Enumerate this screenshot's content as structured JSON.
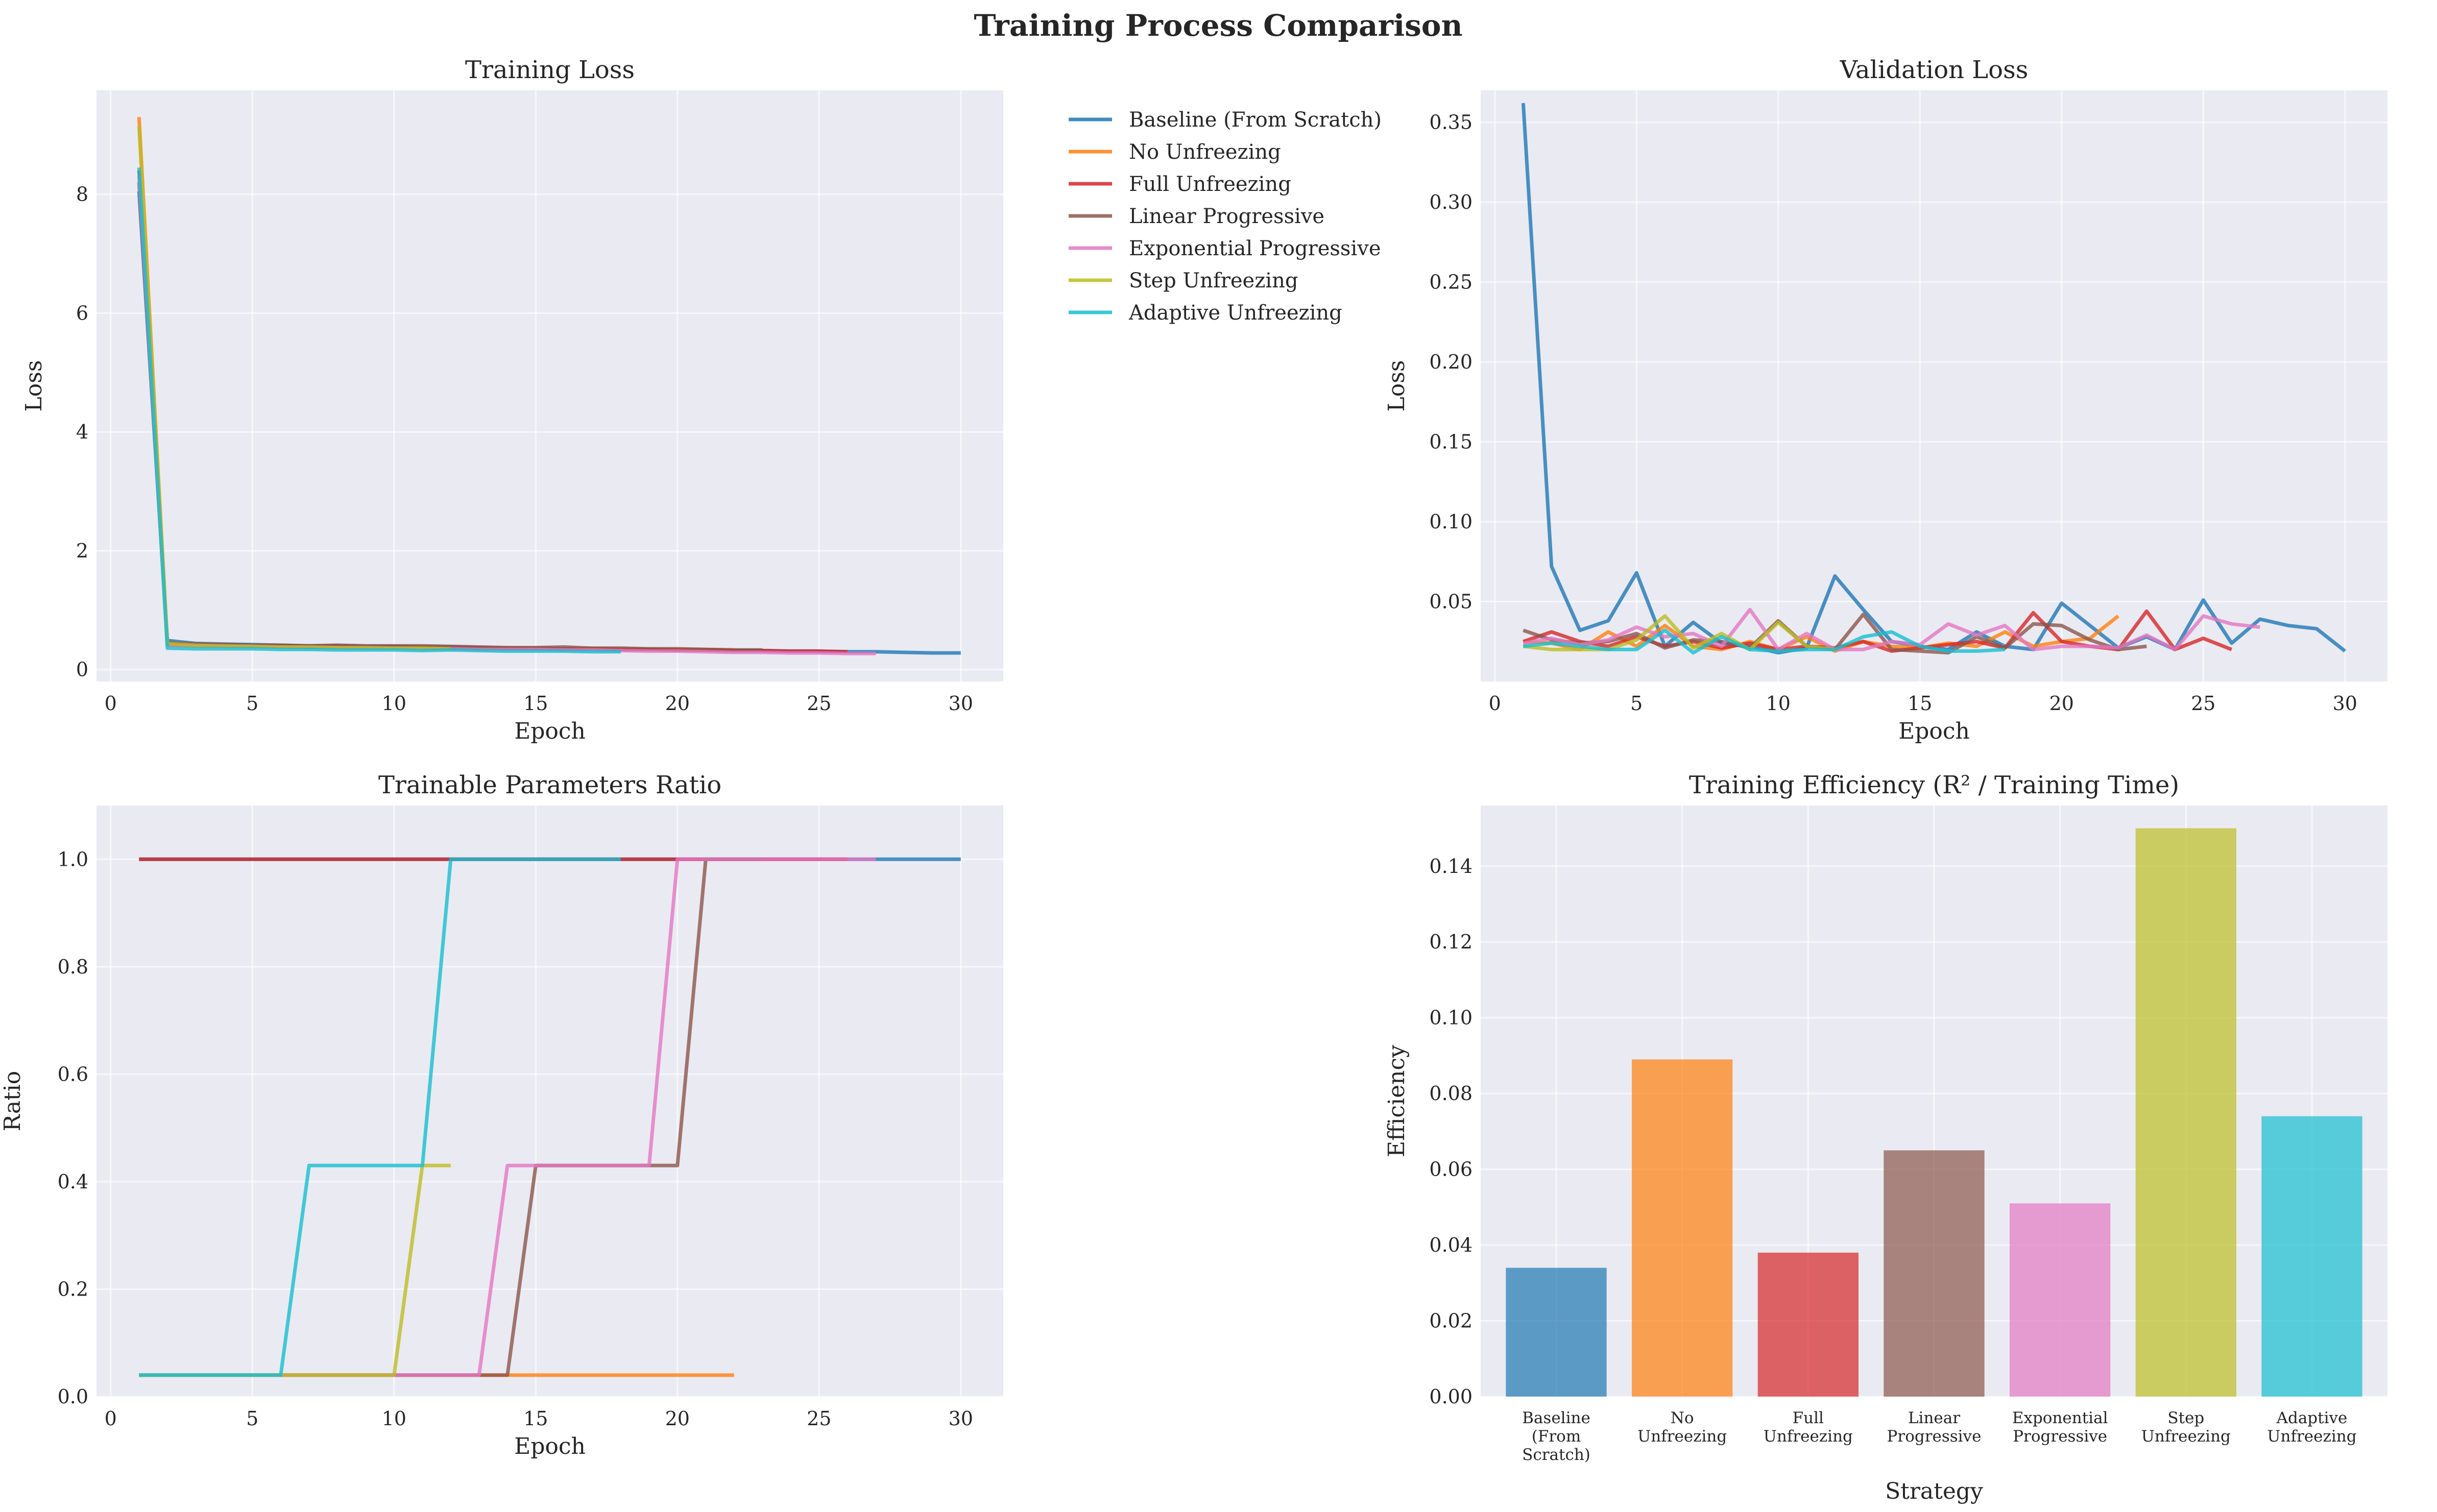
{
  "figure": {
    "suptitle": "Training Process Comparison"
  },
  "legend": {
    "placement": "center-top",
    "entries": [
      {
        "name": "Baseline (From Scratch)",
        "color": "#1f77b4"
      },
      {
        "name": "No Unfreezing",
        "color": "#ff7f0e"
      },
      {
        "name": "Full Unfreezing",
        "color": "#d62728"
      },
      {
        "name": "Linear Progressive",
        "color": "#8c564b"
      },
      {
        "name": "Exponential Progressive",
        "color": "#e377c2"
      },
      {
        "name": "Step Unfreezing",
        "color": "#bcbd22"
      },
      {
        "name": "Adaptive Unfreezing",
        "color": "#17becf"
      }
    ]
  },
  "chart_data": [
    {
      "id": "train",
      "type": "line",
      "title": "Training Loss",
      "xlabel": "Epoch",
      "ylabel": "Loss",
      "xlim": [
        -0.5,
        31.5
      ],
      "ylim": [
        -0.2,
        9.75
      ],
      "xticks": [
        0,
        5,
        10,
        15,
        20,
        25,
        30
      ],
      "yticks": [
        0,
        2,
        4,
        6,
        8
      ],
      "ytick_labels": [
        "0",
        "2",
        "4",
        "6",
        "8"
      ],
      "grid": true,
      "series": [
        {
          "name": "Baseline (From Scratch)",
          "color": "#1f77b4",
          "x": [
            1,
            2,
            3,
            4,
            5,
            6,
            7,
            8,
            9,
            10,
            11,
            12,
            13,
            14,
            15,
            16,
            17,
            18,
            19,
            20,
            21,
            22,
            23,
            24,
            25,
            26,
            27,
            28,
            29,
            30
          ],
          "y": [
            8.05,
            0.49,
            0.44,
            0.43,
            0.42,
            0.41,
            0.4,
            0.4,
            0.39,
            0.39,
            0.38,
            0.38,
            0.37,
            0.36,
            0.36,
            0.35,
            0.35,
            0.34,
            0.34,
            0.33,
            0.33,
            0.32,
            0.32,
            0.31,
            0.31,
            0.3,
            0.3,
            0.29,
            0.28,
            0.28
          ]
        },
        {
          "name": "No Unfreezing",
          "color": "#ff7f0e",
          "x": [
            1,
            2,
            3,
            4,
            5,
            6,
            7,
            8,
            9,
            10,
            11,
            12,
            13,
            14,
            15,
            16,
            17,
            18,
            19,
            20,
            21,
            22
          ],
          "y": [
            9.3,
            0.42,
            0.4,
            0.4,
            0.39,
            0.39,
            0.38,
            0.38,
            0.38,
            0.37,
            0.37,
            0.37,
            0.36,
            0.36,
            0.36,
            0.35,
            0.35,
            0.35,
            0.34,
            0.34,
            0.34,
            0.33
          ]
        },
        {
          "name": "Full Unfreezing",
          "color": "#d62728",
          "x": [
            1,
            2,
            3,
            4,
            5,
            6,
            7,
            8,
            9,
            10,
            11,
            12,
            13,
            14,
            15,
            16,
            17,
            18,
            19,
            20,
            21,
            22,
            23,
            24,
            25,
            26
          ],
          "y": [
            8.4,
            0.43,
            0.42,
            0.41,
            0.4,
            0.4,
            0.39,
            0.39,
            0.38,
            0.38,
            0.37,
            0.37,
            0.36,
            0.36,
            0.35,
            0.35,
            0.35,
            0.34,
            0.34,
            0.33,
            0.33,
            0.32,
            0.32,
            0.31,
            0.31,
            0.3
          ]
        },
        {
          "name": "Linear Progressive",
          "color": "#8c564b",
          "x": [
            1,
            2,
            3,
            4,
            5,
            6,
            7,
            8,
            9,
            10,
            11,
            12,
            13,
            14,
            15,
            16,
            17,
            18,
            19,
            20,
            21,
            22,
            23
          ],
          "y": [
            8.2,
            0.45,
            0.43,
            0.42,
            0.41,
            0.41,
            0.4,
            0.41,
            0.4,
            0.4,
            0.4,
            0.39,
            0.38,
            0.37,
            0.37,
            0.38,
            0.36,
            0.36,
            0.35,
            0.35,
            0.34,
            0.33,
            0.33
          ]
        },
        {
          "name": "Exponential Progressive",
          "color": "#e377c2",
          "x": [
            1,
            2,
            3,
            4,
            5,
            6,
            7,
            8,
            9,
            10,
            11,
            12,
            13,
            14,
            15,
            16,
            17,
            18,
            19,
            20,
            21,
            22,
            23,
            24,
            25,
            26,
            27
          ],
          "y": [
            8.3,
            0.41,
            0.4,
            0.39,
            0.39,
            0.38,
            0.37,
            0.37,
            0.36,
            0.36,
            0.35,
            0.35,
            0.34,
            0.34,
            0.34,
            0.33,
            0.33,
            0.32,
            0.31,
            0.31,
            0.3,
            0.29,
            0.29,
            0.28,
            0.28,
            0.27,
            0.27
          ]
        },
        {
          "name": "Step Unfreezing",
          "color": "#bcbd22",
          "x": [
            1,
            2,
            3,
            4,
            5,
            6,
            7,
            8,
            9,
            10,
            11,
            12
          ],
          "y": [
            9.15,
            0.44,
            0.41,
            0.4,
            0.39,
            0.38,
            0.38,
            0.37,
            0.37,
            0.36,
            0.36,
            0.35
          ]
        },
        {
          "name": "Adaptive Unfreezing",
          "color": "#17becf",
          "x": [
            1,
            2,
            3,
            4,
            5,
            6,
            7,
            8,
            9,
            10,
            11,
            12,
            13,
            14,
            15,
            16,
            17,
            18
          ],
          "y": [
            8.45,
            0.36,
            0.35,
            0.35,
            0.35,
            0.34,
            0.34,
            0.33,
            0.33,
            0.33,
            0.32,
            0.33,
            0.32,
            0.31,
            0.31,
            0.31,
            0.3,
            0.3
          ]
        }
      ]
    },
    {
      "id": "val",
      "type": "line",
      "title": "Validation Loss",
      "xlabel": "Epoch",
      "ylabel": "Loss",
      "xlim": [
        -0.5,
        31.5
      ],
      "ylim": [
        0.0,
        0.37
      ],
      "xticks": [
        0,
        5,
        10,
        15,
        20,
        25,
        30
      ],
      "yticks": [
        0.05,
        0.1,
        0.15,
        0.2,
        0.25,
        0.3,
        0.35
      ],
      "ytick_labels": [
        "0.05",
        "0.10",
        "0.15",
        "0.20",
        "0.25",
        "0.30",
        "0.35"
      ],
      "grid": true,
      "series": [
        {
          "name": "Baseline (From Scratch)",
          "color": "#1f77b4",
          "x": [
            1,
            2,
            3,
            4,
            5,
            6,
            7,
            8,
            9,
            10,
            11,
            12,
            13,
            14,
            15,
            16,
            17,
            18,
            19,
            20,
            21,
            22,
            23,
            24,
            25,
            26,
            27,
            28,
            29,
            30
          ],
          "y": [
            0.362,
            0.072,
            0.032,
            0.038,
            0.068,
            0.022,
            0.037,
            0.024,
            0.022,
            0.018,
            0.021,
            0.066,
            0.045,
            0.025,
            0.022,
            0.02,
            0.031,
            0.022,
            0.02,
            0.049,
            0.035,
            0.021,
            0.028,
            0.02,
            0.051,
            0.024,
            0.039,
            0.035,
            0.033,
            0.019
          ]
        },
        {
          "name": "No Unfreezing",
          "color": "#ff7f0e",
          "x": [
            1,
            2,
            3,
            4,
            5,
            6,
            7,
            8,
            9,
            10,
            11,
            12,
            13,
            14,
            15,
            16,
            17,
            18,
            19,
            20,
            21,
            22
          ],
          "y": [
            0.025,
            0.024,
            0.02,
            0.031,
            0.022,
            0.035,
            0.022,
            0.02,
            0.025,
            0.02,
            0.028,
            0.019,
            0.025,
            0.022,
            0.021,
            0.024,
            0.022,
            0.031,
            0.022,
            0.025,
            0.027,
            0.041
          ]
        },
        {
          "name": "Full Unfreezing",
          "color": "#d62728",
          "x": [
            1,
            2,
            3,
            4,
            5,
            6,
            7,
            8,
            9,
            10,
            11,
            12,
            13,
            14,
            15,
            16,
            17,
            18,
            19,
            20,
            21,
            22,
            23,
            24,
            25,
            26
          ],
          "y": [
            0.025,
            0.031,
            0.025,
            0.022,
            0.028,
            0.022,
            0.025,
            0.021,
            0.024,
            0.02,
            0.022,
            0.021,
            0.025,
            0.019,
            0.021,
            0.023,
            0.025,
            0.021,
            0.043,
            0.025,
            0.022,
            0.02,
            0.044,
            0.02,
            0.027,
            0.02
          ]
        },
        {
          "name": "Linear Progressive",
          "color": "#8c564b",
          "x": [
            1,
            2,
            3,
            4,
            5,
            6,
            7,
            8,
            9,
            10,
            11,
            12,
            13,
            14,
            15,
            16,
            17,
            18,
            19,
            20,
            21,
            22,
            23
          ],
          "y": [
            0.032,
            0.026,
            0.024,
            0.025,
            0.03,
            0.021,
            0.026,
            0.025,
            0.021,
            0.038,
            0.022,
            0.02,
            0.042,
            0.02,
            0.019,
            0.018,
            0.028,
            0.021,
            0.036,
            0.035,
            0.026,
            0.02,
            0.022
          ]
        },
        {
          "name": "Exponential Progressive",
          "color": "#e377c2",
          "x": [
            1,
            2,
            3,
            4,
            5,
            6,
            7,
            8,
            9,
            10,
            11,
            12,
            13,
            14,
            15,
            16,
            17,
            18,
            19,
            20,
            21,
            22,
            23,
            24,
            25,
            26,
            27
          ],
          "y": [
            0.024,
            0.027,
            0.023,
            0.026,
            0.034,
            0.028,
            0.03,
            0.022,
            0.045,
            0.02,
            0.03,
            0.02,
            0.02,
            0.025,
            0.023,
            0.036,
            0.029,
            0.035,
            0.02,
            0.022,
            0.022,
            0.021,
            0.029,
            0.02,
            0.041,
            0.036,
            0.034
          ]
        },
        {
          "name": "Step Unfreezing",
          "color": "#bcbd22",
          "x": [
            1,
            2,
            3,
            4,
            5,
            6,
            7,
            8,
            9,
            10,
            11,
            12
          ],
          "y": [
            0.022,
            0.02,
            0.02,
            0.02,
            0.026,
            0.041,
            0.021,
            0.03,
            0.02,
            0.037,
            0.022,
            0.02
          ]
        },
        {
          "name": "Adaptive Unfreezing",
          "color": "#17becf",
          "x": [
            1,
            2,
            3,
            4,
            5,
            6,
            7,
            8,
            9,
            10,
            11,
            12,
            13,
            14,
            15,
            16,
            17,
            18
          ],
          "y": [
            0.022,
            0.024,
            0.022,
            0.02,
            0.02,
            0.032,
            0.018,
            0.028,
            0.02,
            0.019,
            0.02,
            0.02,
            0.028,
            0.031,
            0.022,
            0.019,
            0.019,
            0.02
          ]
        }
      ]
    },
    {
      "id": "ratio",
      "type": "line",
      "title": "Trainable Parameters Ratio",
      "xlabel": "Epoch",
      "ylabel": "Ratio",
      "xlim": [
        -0.5,
        31.5
      ],
      "ylim": [
        0.0,
        1.1
      ],
      "xticks": [
        0,
        5,
        10,
        15,
        20,
        25,
        30
      ],
      "yticks": [
        0.0,
        0.2,
        0.4,
        0.6,
        0.8,
        1.0
      ],
      "ytick_labels": [
        "0.0",
        "0.2",
        "0.4",
        "0.6",
        "0.8",
        "1.0"
      ],
      "grid": true,
      "series": [
        {
          "name": "Baseline (From Scratch)",
          "color": "#1f77b4",
          "x": [
            1,
            30
          ],
          "y": [
            1.0,
            1.0
          ]
        },
        {
          "name": "No Unfreezing",
          "color": "#ff7f0e",
          "x": [
            1,
            22
          ],
          "y": [
            0.04,
            0.04
          ]
        },
        {
          "name": "Full Unfreezing",
          "color": "#d62728",
          "x": [
            1,
            26
          ],
          "y": [
            1.0,
            1.0
          ]
        },
        {
          "name": "Linear Progressive",
          "color": "#8c564b",
          "x": [
            1,
            14,
            15,
            20,
            21,
            23
          ],
          "y": [
            0.04,
            0.04,
            0.43,
            0.43,
            1.0,
            1.0
          ]
        },
        {
          "name": "Exponential Progressive",
          "color": "#e377c2",
          "x": [
            1,
            13,
            14,
            19,
            20,
            27
          ],
          "y": [
            0.04,
            0.04,
            0.43,
            0.43,
            1.0,
            1.0
          ]
        },
        {
          "name": "Step Unfreezing",
          "color": "#bcbd22",
          "x": [
            1,
            10,
            11,
            12
          ],
          "y": [
            0.04,
            0.04,
            0.43,
            0.43
          ]
        },
        {
          "name": "Adaptive Unfreezing",
          "color": "#17becf",
          "x": [
            1,
            6,
            7,
            11,
            12,
            18
          ],
          "y": [
            0.04,
            0.04,
            0.43,
            0.43,
            1.0,
            1.0
          ]
        }
      ]
    },
    {
      "id": "eff",
      "type": "bar",
      "title": "Training Efficiency (R² / Training Time)",
      "xlabel": "Strategy",
      "ylabel": "Efficiency",
      "ylim": [
        0.0,
        0.156
      ],
      "yticks": [
        0.0,
        0.02,
        0.04,
        0.06,
        0.08,
        0.1,
        0.12,
        0.14
      ],
      "ytick_labels": [
        "0.00",
        "0.02",
        "0.04",
        "0.06",
        "0.08",
        "0.10",
        "0.12",
        "0.14"
      ],
      "grid": true,
      "categories": [
        "Baseline\n(From\nScratch)",
        "No\nUnfreezing",
        "Full\nUnfreezing",
        "Linear\nProgressive",
        "Exponential\nProgressive",
        "Step\nUnfreezing",
        "Adaptive\nUnfreezing"
      ],
      "values": [
        0.034,
        0.089,
        0.038,
        0.065,
        0.051,
        0.15,
        0.074
      ],
      "colors": [
        "#1f77b4",
        "#ff7f0e",
        "#d62728",
        "#8c564b",
        "#e377c2",
        "#bcbd22",
        "#17becf"
      ]
    }
  ]
}
